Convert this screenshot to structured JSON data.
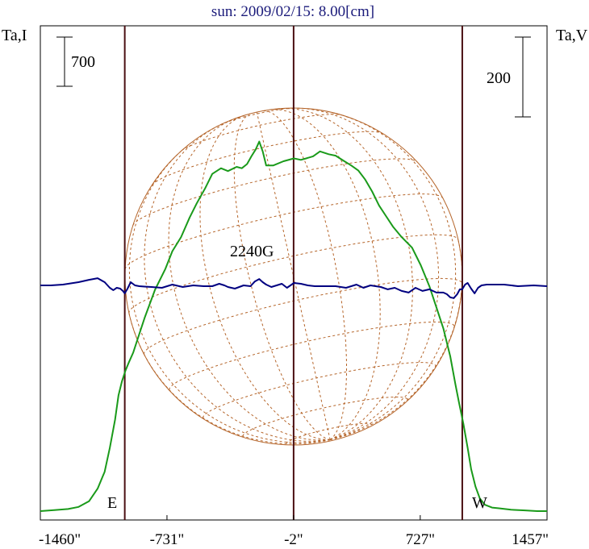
{
  "chart_data": {
    "type": "line",
    "title": "sun: 2009/02/15: 8.00[cm]",
    "left_axis_label": "Ta,I",
    "right_axis_label": "Ta,V",
    "left_scale_bar_label": "700",
    "right_scale_bar_label": "200",
    "field_label": "2240G",
    "x_tick_labels": [
      "-1460\"",
      "-731\"",
      "-2\"",
      "727\"",
      "1457\""
    ],
    "x_ticks": [
      -1460,
      -731,
      -2,
      727,
      1457
    ],
    "xlim": [
      -1460,
      1457
    ],
    "vertical_markers": [
      -974,
      -2,
      969
    ],
    "limb_labels": {
      "east": "E",
      "west": "W"
    },
    "series": [
      {
        "name": "I",
        "color": "#1a9a1a",
        "axis": "left",
        "x": [
          -1460,
          -1380,
          -1300,
          -1240,
          -1180,
          -1130,
          -1090,
          -1060,
          -1030,
          -1010,
          -990,
          -970,
          -950,
          -925,
          -900,
          -860,
          -800,
          -740,
          -700,
          -650,
          -600,
          -560,
          -510,
          -470,
          -420,
          -380,
          -330,
          -300,
          -270,
          -245,
          -220,
          -200,
          -180,
          -160,
          -120,
          -60,
          0,
          40,
          70,
          110,
          150,
          200,
          240,
          290,
          330,
          370,
          410,
          450,
          490,
          530,
          570,
          620,
          680,
          730,
          780,
          820,
          860,
          880,
          900,
          915,
          930,
          950,
          975,
          1000,
          1020,
          1045,
          1070,
          1100,
          1140,
          1180,
          1250,
          1330,
          1400,
          1457
        ],
        "y": [
          0,
          15,
          30,
          60,
          140,
          320,
          560,
          900,
          1300,
          1650,
          1850,
          2000,
          2120,
          2260,
          2450,
          2750,
          3150,
          3450,
          3700,
          3900,
          4180,
          4380,
          4600,
          4800,
          4880,
          4840,
          4900,
          4880,
          4940,
          5050,
          5150,
          5260,
          5120,
          4920,
          4920,
          4980,
          5020,
          5000,
          5020,
          5050,
          5120,
          5080,
          5060,
          4980,
          4920,
          4850,
          4720,
          4550,
          4350,
          4200,
          4050,
          3900,
          3750,
          3500,
          3200,
          2900,
          2600,
          2400,
          2200,
          2000,
          1800,
          1550,
          1250,
          900,
          600,
          350,
          180,
          90,
          50,
          40,
          20,
          10,
          0,
          0
        ]
      },
      {
        "name": "V",
        "color": "#000080",
        "axis": "right",
        "x": [
          -1460,
          -1400,
          -1330,
          -1240,
          -1180,
          -1130,
          -1090,
          -1060,
          -1040,
          -1020,
          -1000,
          -985,
          -974,
          -960,
          -940,
          -915,
          -890,
          -860,
          -820,
          -760,
          -700,
          -640,
          -580,
          -520,
          -470,
          -430,
          -400,
          -380,
          -340,
          -290,
          -250,
          -225,
          -200,
          -180,
          -160,
          -130,
          -100,
          -70,
          -40,
          0,
          40,
          80,
          120,
          180,
          240,
          300,
          360,
          400,
          440,
          470,
          500,
          540,
          580,
          620,
          660,
          700,
          740,
          780,
          820,
          860,
          880,
          900,
          920,
          940,
          955,
          969,
          985,
          1000,
          1020,
          1040,
          1060,
          1080,
          1110,
          1150,
          1210,
          1290,
          1380,
          1457
        ],
        "y": [
          0,
          0,
          2,
          8,
          14,
          18,
          8,
          -6,
          -12,
          -6,
          -8,
          -14,
          -20,
          -10,
          8,
          0,
          -2,
          -3,
          -4,
          -6,
          2,
          -4,
          0,
          -2,
          -2,
          4,
          0,
          -4,
          -8,
          0,
          -2,
          10,
          16,
          8,
          2,
          -4,
          0,
          4,
          -6,
          6,
          4,
          0,
          -2,
          -2,
          -2,
          -6,
          2,
          -6,
          0,
          -2,
          -4,
          -10,
          -6,
          -14,
          -18,
          -6,
          -14,
          -10,
          -18,
          -18,
          -22,
          -30,
          -32,
          -22,
          -10,
          -10,
          2,
          6,
          -8,
          -20,
          -6,
          0,
          2,
          2,
          2,
          -2,
          0,
          -2
        ]
      }
    ],
    "grid": false
  }
}
